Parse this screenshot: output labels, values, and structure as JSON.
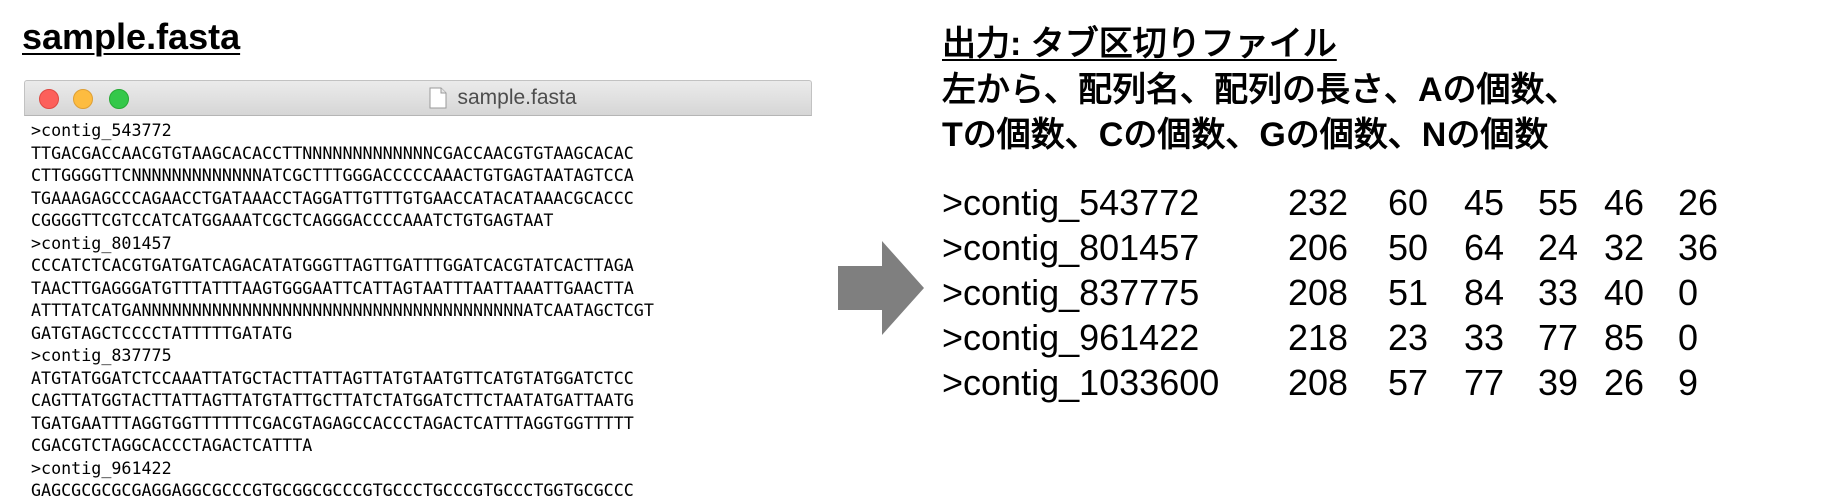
{
  "left_title": "sample.fasta",
  "window": {
    "title": "sample.fasta",
    "lines": [
      ">contig_543772",
      "TTGACGACCAACGTGTAAGCACACCTTNNNNNNNNNNNNNCGACCAACGTGTAAGCACAC",
      "CTTGGGGTTCNNNNNNNNNNNNNATCGCTTTGGGACCCCCAAACTGTGAGTAATAGTCCA",
      "TGAAAGAGCCCAGAACCTGATAAACCTAGGATTGTTTGTGAACCATACATAAACGCACCC",
      "CGGGGTTCGTCCATCATGGAAATCGCTCAGGGACCCCAAATCTGTGAGTAAT",
      ">contig_801457",
      "CCCATCTCACGTGATGATCAGACATATGGGTTAGTTGATTTGGATCACGTATCACTTAGA",
      "TAACTTGAGGGATGTTTATTTAAGTGGGAATTCATTAGTAATTTAATTAAATTGAACTTA",
      "ATTTATCATGANNNNNNNNNNNNNNNNNNNNNNNNNNNNNNNNNNNNNNATCAATAGCTCGT",
      "GATGTAGCTCCCCTATTTTTGATATG",
      ">contig_837775",
      "ATGTATGGATCTCCAAATTATGCTACTTATTAGTTATGTAATGTTCATGTATGGATCTCC",
      "CAGTTATGGTACTTATTAGTTATGTATTGCTTATCTATGGATCTTCTAATATGATTAATG",
      "TGATGAATTTAGGTGGTTTTTTCGACGTAGAGCCACCCTAGACTCATTTAGGTGGTTTTT",
      "CGACGTCTAGGCACCCTAGACTCATTTA",
      ">contig_961422",
      "GAGCGCGCGCGAGGAGGCGCCCGTGCGGCGCCCGTGCCCTGCCCGTGCCCTGGTGCGCCC"
    ]
  },
  "output": {
    "title": "出力: タブ区切りファイル",
    "desc_line1": "左から、配列名、配列の長さ、Aの個数、",
    "desc_line2": "Tの個数、Cの個数、Gの個数、Nの個数",
    "rows": [
      [
        ">contig_543772",
        "232",
        "60",
        "45",
        "55",
        "46",
        "26"
      ],
      [
        ">contig_801457",
        "206",
        "50",
        "64",
        "24",
        "32",
        "36"
      ],
      [
        ">contig_837775",
        "208",
        "51",
        "84",
        "33",
        "40",
        "0"
      ],
      [
        ">contig_961422",
        "218",
        "23",
        "33",
        "77",
        "85",
        "0"
      ],
      [
        ">contig_1033600",
        "208",
        "57",
        "77",
        "39",
        "26",
        "9"
      ]
    ]
  },
  "colors": {
    "arrow": "#7f7f7f",
    "close": "#fc605b",
    "minimize": "#fdbc40",
    "maximize": "#34c84a"
  }
}
